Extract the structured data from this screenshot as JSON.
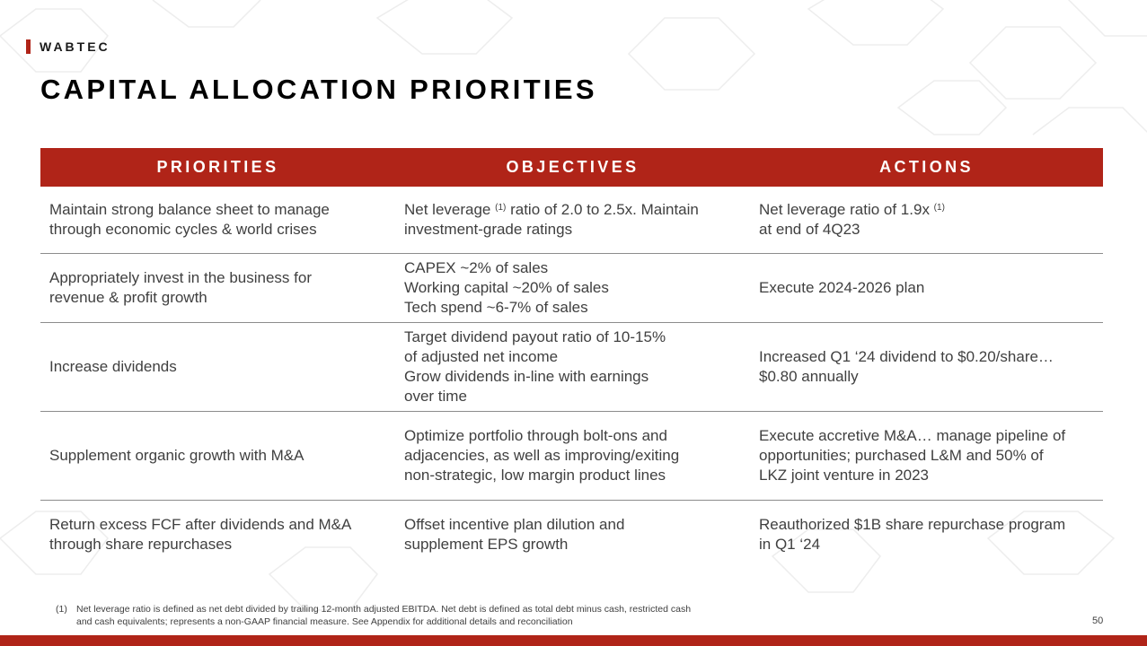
{
  "header": {
    "brand": "WABTEC",
    "title": "CAPITAL ALLOCATION PRIORITIES"
  },
  "table": {
    "columns": [
      "PRIORITIES",
      "OBJECTIVES",
      "ACTIONS"
    ],
    "rows": [
      {
        "priority": [
          "Maintain strong balance sheet to manage",
          "through economic cycles & world crises"
        ],
        "objective_parts": {
          "a": "Net leverage ",
          "sup": "(1)",
          "b": " ratio of 2.0 to 2.5x. Maintain",
          "c": "investment-grade ratings"
        },
        "action_parts": {
          "a": "Net leverage ratio of 1.9x ",
          "sup": "(1)",
          "b": "at end of 4Q23"
        }
      },
      {
        "priority": [
          "Appropriately invest in the business for",
          "revenue & profit growth"
        ],
        "objective": [
          "CAPEX ~2% of sales",
          "Working capital ~20% of sales",
          "Tech spend ~6-7% of sales"
        ],
        "action": [
          "Execute 2024-2026 plan"
        ]
      },
      {
        "priority": [
          "Increase dividends"
        ],
        "objective": [
          "Target dividend payout ratio of 10-15%",
          "of adjusted net income",
          "Grow dividends in-line with earnings",
          "over time"
        ],
        "action": [
          "Increased Q1 ‘24 dividend to $0.20/share…",
          "$0.80 annually"
        ]
      },
      {
        "priority": [
          "Supplement organic growth with M&A"
        ],
        "objective": [
          "Optimize portfolio through bolt-ons and",
          "adjacencies, as well as improving/exiting",
          "non-strategic, low margin product lines"
        ],
        "action": [
          "Execute accretive M&A… manage pipeline of",
          "opportunities; purchased L&M and 50% of",
          "LKZ joint venture in 2023"
        ]
      },
      {
        "priority": [
          "Return excess FCF after dividends and M&A",
          "through share repurchases"
        ],
        "objective": [
          "Offset incentive plan dilution and",
          "supplement EPS growth"
        ],
        "action": [
          "Reauthorized $1B share repurchase program",
          "in Q1 ‘24"
        ]
      }
    ]
  },
  "footnote": {
    "number": "(1)",
    "lines": [
      "Net leverage ratio is defined as net debt divided by trailing 12-month adjusted EBITDA. Net debt is defined as total debt minus cash, restricted cash",
      "and cash equivalents; represents a non-GAAP financial measure. See Appendix for additional details and reconciliation"
    ]
  },
  "page_number": "50",
  "colors": {
    "accent": "#b02418",
    "text": "#404040",
    "divider": "#8c8c8c"
  }
}
